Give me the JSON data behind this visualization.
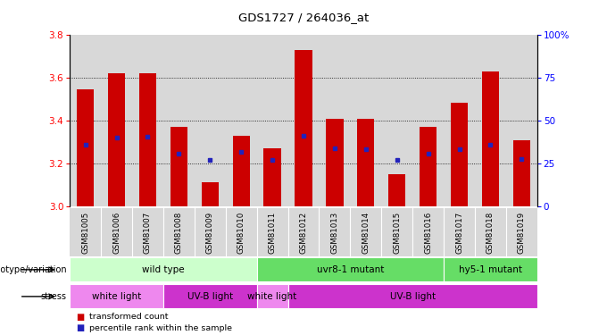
{
  "title": "GDS1727 / 264036_at",
  "samples": [
    "GSM81005",
    "GSM81006",
    "GSM81007",
    "GSM81008",
    "GSM81009",
    "GSM81010",
    "GSM81011",
    "GSM81012",
    "GSM81013",
    "GSM81014",
    "GSM81015",
    "GSM81016",
    "GSM81017",
    "GSM81018",
    "GSM81019"
  ],
  "red_values": [
    3.545,
    3.62,
    3.62,
    3.37,
    3.11,
    3.33,
    3.27,
    3.73,
    3.41,
    3.41,
    3.15,
    3.37,
    3.485,
    3.63,
    3.31
  ],
  "blue_values": [
    3.285,
    3.32,
    3.325,
    3.245,
    3.215,
    3.255,
    3.215,
    3.33,
    3.27,
    3.265,
    3.215,
    3.245,
    3.265,
    3.285,
    3.22
  ],
  "ylim_left": [
    3.0,
    3.8
  ],
  "ylim_right": [
    0,
    100
  ],
  "yticks_left": [
    3.0,
    3.2,
    3.4,
    3.6,
    3.8
  ],
  "yticks_right": [
    0,
    25,
    50,
    75,
    100
  ],
  "ytick_labels_right": [
    "0",
    "25",
    "50",
    "75",
    "100%"
  ],
  "bar_color": "#cc0000",
  "blue_color": "#2222bb",
  "bar_width": 0.55,
  "geno_configs": [
    {
      "start": 0,
      "end": 6,
      "color": "#ccffcc",
      "label": "wild type"
    },
    {
      "start": 6,
      "end": 12,
      "color": "#66dd66",
      "label": "uvr8-1 mutant"
    },
    {
      "start": 12,
      "end": 15,
      "color": "#66dd66",
      "label": "hy5-1 mutant"
    }
  ],
  "stress_configs": [
    {
      "start": 0,
      "end": 3,
      "color": "#ee88ee",
      "label": "white light"
    },
    {
      "start": 3,
      "end": 6,
      "color": "#cc33cc",
      "label": "UV-B light"
    },
    {
      "start": 6,
      "end": 7,
      "color": "#ee88ee",
      "label": "white light"
    },
    {
      "start": 7,
      "end": 15,
      "color": "#cc33cc",
      "label": "UV-B light"
    }
  ]
}
